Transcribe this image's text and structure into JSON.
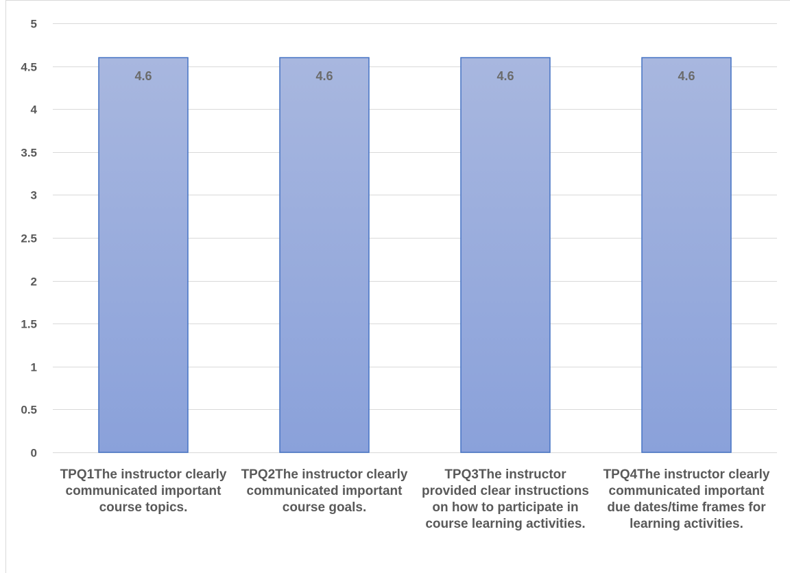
{
  "chart_data": {
    "type": "bar",
    "title": "",
    "xlabel": "",
    "ylabel": "",
    "categories": [
      "TPQ1The instructor clearly communicated important course topics.",
      "TPQ2The instructor clearly communicated important course goals.",
      "TPQ3The instructor provided clear instructions on how to participate in course learning activities.",
      "TPQ4The instructor clearly communicated important due dates/time frames for learning activities."
    ],
    "values": [
      4.6,
      4.6,
      4.6,
      4.6
    ],
    "data_labels": [
      "4.6",
      "4.6",
      "4.6",
      "4.6"
    ],
    "ylim": [
      0,
      5
    ],
    "y_ticks": [
      "0",
      "0.5",
      "1",
      "1.5",
      "2",
      "2.5",
      "3",
      "3.5",
      "4",
      "4.5",
      "5"
    ],
    "grid": true,
    "legend": "none",
    "colors": {
      "bar_top": "#a8b7df",
      "bar_bottom": "#8aa1da",
      "bar_border": "#4472c4",
      "grid": "#d9d9d9",
      "axis_text": "#595959"
    }
  }
}
